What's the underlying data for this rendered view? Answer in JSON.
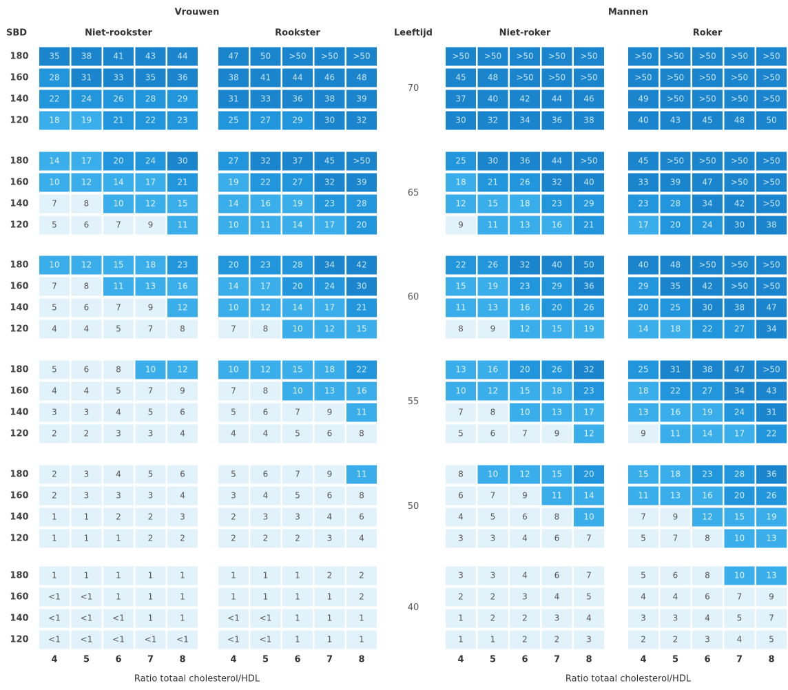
{
  "sbd_header": "SBD",
  "age_header": "Leeftijd",
  "sbd_values": [
    180,
    160,
    140,
    120
  ],
  "ages": [
    70,
    65,
    60,
    55,
    50,
    40
  ],
  "ratio_ticks": [
    4,
    5,
    6,
    7,
    8
  ],
  "sections": [
    {
      "title": "Vrouwen",
      "x_axis_label": "Ratio totaal cholesterol/HDL",
      "panels": [
        {
          "label": "Niet-rookster",
          "cells": [
            [
              [
                35,
                38,
                41,
                43,
                44
              ],
              [
                28,
                31,
                33,
                35,
                36
              ],
              [
                22,
                24,
                26,
                28,
                29
              ],
              [
                18,
                19,
                21,
                22,
                23
              ]
            ],
            [
              [
                14,
                17,
                20,
                24,
                30
              ],
              [
                10,
                12,
                14,
                17,
                21
              ],
              [
                7,
                8,
                10,
                12,
                15
              ],
              [
                5,
                6,
                7,
                9,
                11
              ]
            ],
            [
              [
                10,
                12,
                15,
                18,
                23
              ],
              [
                7,
                8,
                11,
                13,
                16
              ],
              [
                5,
                6,
                7,
                9,
                12
              ],
              [
                4,
                4,
                5,
                7,
                8
              ]
            ],
            [
              [
                5,
                6,
                8,
                10,
                12
              ],
              [
                4,
                4,
                5,
                7,
                9
              ],
              [
                3,
                3,
                4,
                5,
                6
              ],
              [
                2,
                2,
                3,
                3,
                4
              ]
            ],
            [
              [
                2,
                3,
                4,
                5,
                6
              ],
              [
                2,
                3,
                3,
                3,
                4
              ],
              [
                1,
                1,
                2,
                2,
                3
              ],
              [
                1,
                1,
                1,
                2,
                2
              ]
            ],
            [
              [
                1,
                1,
                1,
                1,
                1
              ],
              [
                "<1",
                "<1",
                1,
                1,
                1
              ],
              [
                "<1",
                "<1",
                "<1",
                1,
                1
              ],
              [
                "<1",
                "<1",
                "<1",
                "<1",
                "<1"
              ]
            ]
          ]
        },
        {
          "label": "Rookster",
          "cells": [
            [
              [
                47,
                50,
                ">50",
                ">50",
                ">50"
              ],
              [
                38,
                41,
                44,
                46,
                48
              ],
              [
                31,
                33,
                36,
                38,
                39
              ],
              [
                25,
                27,
                29,
                30,
                32
              ]
            ],
            [
              [
                27,
                32,
                37,
                45,
                ">50"
              ],
              [
                19,
                22,
                27,
                32,
                39
              ],
              [
                14,
                16,
                19,
                23,
                28
              ],
              [
                10,
                11,
                14,
                17,
                20
              ]
            ],
            [
              [
                20,
                23,
                28,
                34,
                42
              ],
              [
                14,
                17,
                20,
                24,
                30
              ],
              [
                10,
                12,
                14,
                17,
                21
              ],
              [
                7,
                8,
                10,
                12,
                15
              ]
            ],
            [
              [
                10,
                12,
                15,
                18,
                22
              ],
              [
                7,
                8,
                10,
                13,
                16
              ],
              [
                5,
                6,
                7,
                9,
                11
              ],
              [
                4,
                4,
                5,
                6,
                8
              ]
            ],
            [
              [
                5,
                6,
                7,
                9,
                11
              ],
              [
                3,
                4,
                5,
                6,
                8
              ],
              [
                2,
                3,
                3,
                4,
                6
              ],
              [
                2,
                2,
                2,
                3,
                4
              ]
            ],
            [
              [
                1,
                1,
                1,
                2,
                2
              ],
              [
                1,
                1,
                1,
                1,
                2
              ],
              [
                "<1",
                "<1",
                1,
                1,
                1
              ],
              [
                "<1",
                "<1",
                1,
                1,
                1
              ]
            ]
          ]
        }
      ]
    },
    {
      "title": "Mannen",
      "x_axis_label": "Ratio totaal cholesterol/HDL",
      "panels": [
        {
          "label": "Niet-roker",
          "cells": [
            [
              [
                ">50",
                ">50",
                ">50",
                ">50",
                ">50"
              ],
              [
                45,
                48,
                ">50",
                ">50",
                ">50"
              ],
              [
                37,
                40,
                42,
                44,
                46
              ],
              [
                30,
                32,
                34,
                36,
                38
              ]
            ],
            [
              [
                25,
                30,
                36,
                44,
                ">50"
              ],
              [
                18,
                21,
                26,
                32,
                40
              ],
              [
                12,
                15,
                18,
                23,
                29
              ],
              [
                9,
                11,
                13,
                16,
                21
              ]
            ],
            [
              [
                22,
                26,
                32,
                40,
                50
              ],
              [
                15,
                19,
                23,
                29,
                36
              ],
              [
                11,
                13,
                16,
                20,
                26
              ],
              [
                8,
                9,
                12,
                15,
                19
              ]
            ],
            [
              [
                13,
                16,
                20,
                26,
                32
              ],
              [
                10,
                12,
                15,
                18,
                23
              ],
              [
                7,
                8,
                10,
                13,
                17
              ],
              [
                5,
                6,
                7,
                9,
                12
              ]
            ],
            [
              [
                8,
                10,
                12,
                15,
                20
              ],
              [
                6,
                7,
                9,
                11,
                14
              ],
              [
                4,
                5,
                6,
                8,
                10
              ],
              [
                3,
                3,
                4,
                6,
                7
              ]
            ],
            [
              [
                3,
                3,
                4,
                6,
                7
              ],
              [
                2,
                2,
                3,
                4,
                5
              ],
              [
                1,
                2,
                2,
                3,
                4
              ],
              [
                1,
                1,
                2,
                2,
                3
              ]
            ]
          ]
        },
        {
          "label": "Roker",
          "cells": [
            [
              [
                ">50",
                ">50",
                ">50",
                ">50",
                ">50"
              ],
              [
                ">50",
                ">50",
                ">50",
                ">50",
                ">50"
              ],
              [
                49,
                ">50",
                ">50",
                ">50",
                ">50"
              ],
              [
                40,
                43,
                45,
                48,
                50
              ]
            ],
            [
              [
                45,
                ">50",
                ">50",
                ">50",
                ">50"
              ],
              [
                33,
                39,
                47,
                ">50",
                ">50"
              ],
              [
                23,
                28,
                34,
                42,
                ">50"
              ],
              [
                17,
                20,
                24,
                30,
                38
              ]
            ],
            [
              [
                40,
                48,
                ">50",
                ">50",
                ">50"
              ],
              [
                29,
                35,
                42,
                ">50",
                ">50"
              ],
              [
                20,
                25,
                30,
                38,
                47
              ],
              [
                14,
                18,
                22,
                27,
                34
              ]
            ],
            [
              [
                25,
                31,
                38,
                47,
                ">50"
              ],
              [
                18,
                22,
                27,
                34,
                43
              ],
              [
                13,
                16,
                19,
                24,
                31
              ],
              [
                9,
                11,
                14,
                17,
                22
              ]
            ],
            [
              [
                15,
                18,
                23,
                28,
                36
              ],
              [
                11,
                13,
                16,
                20,
                26
              ],
              [
                7,
                9,
                12,
                15,
                19
              ],
              [
                5,
                7,
                8,
                10,
                13
              ]
            ],
            [
              [
                5,
                6,
                8,
                10,
                13
              ],
              [
                4,
                4,
                6,
                7,
                9
              ],
              [
                3,
                3,
                4,
                5,
                7
              ],
              [
                2,
                2,
                3,
                4,
                5
              ]
            ]
          ]
        }
      ]
    }
  ]
}
